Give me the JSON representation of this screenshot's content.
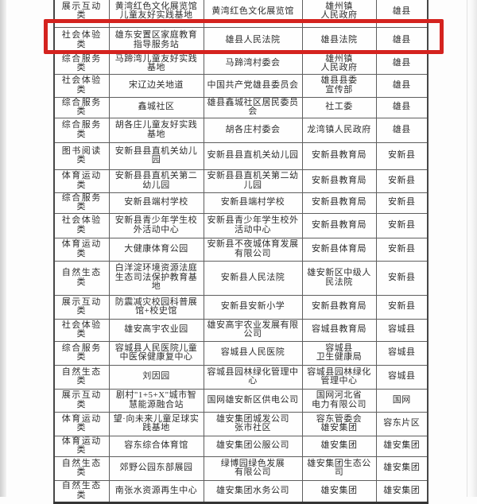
{
  "page": {
    "background": "#fdfdfd",
    "description_colors": {
      "table_border": "#5e5e5e",
      "text": "#2d2d2d",
      "highlight_red": "#d4231f"
    }
  },
  "highlight": {
    "color": "#d4231f",
    "highlighted_row_index": 1
  },
  "table": {
    "rows": [
      {
        "category": "展示互动类",
        "site": "黄湾红色文化展览馆\n儿童友好实践基地",
        "operator": "黄湾红色文化展览馆",
        "authority": "雄州镇\n人民政府",
        "district": "雄县"
      },
      {
        "category": "社会体验类",
        "site": "雄东安置区家庭教育\n指导服务站",
        "operator": "雄县人民法院",
        "authority": "雄县法院",
        "district": "雄县",
        "highlighted": true
      },
      {
        "category": "综合服务类",
        "site": "马蹄湾儿童友好实践\n基地",
        "operator": "马蹄湾村委会",
        "authority": "雄州镇\n人民政府",
        "district": "雄县"
      },
      {
        "category": "社会体验类",
        "site": "宋辽边关地道",
        "operator": "中国共产党雄县委员会",
        "authority": "雄县县委\n宣传部",
        "district": "雄县"
      },
      {
        "category": "综合服务类",
        "site": "鑫城社区",
        "operator": "雄县鑫城社区居民委员\n会",
        "authority": "社工委",
        "district": "雄县"
      },
      {
        "category": "综合服务类",
        "site": "胡各庄儿童友好实践\n基地",
        "operator": "胡各庄村委会",
        "authority": "龙湾镇人民政府",
        "district": "雄县"
      },
      {
        "category": "图书阅读类",
        "site": "安新县县直机关幼儿\n园",
        "operator": "安新县县直机关幼儿园",
        "authority": "安新县教育局",
        "district": "安新县"
      },
      {
        "category": "体育运动类",
        "site": "安新县县直机关第二\n幼儿园",
        "operator": "安新县县直机关第二幼\n儿园",
        "authority": "安新县教育局",
        "district": "安新县"
      },
      {
        "category": "综合服务类",
        "site": "安新县端村学校",
        "operator": "安新县端村学校",
        "authority": "安新县教育局",
        "district": "安新县"
      },
      {
        "category": "社会体验类",
        "site": "安新县青少年学生校\n外活动中心",
        "operator": "安新县青少年学生校外\n活动中心",
        "authority": "安新县教育局",
        "district": "安新县"
      },
      {
        "category": "体育运动类",
        "site": "大健康体育公园",
        "operator": "安新县不夜城体育发展\n有限公司",
        "authority": "安新县体育局",
        "district": "安新县"
      },
      {
        "category": "自然生态类",
        "site": "白洋淀环境资源法庭\n生态司法保护教育基\n地",
        "operator": "安新县人民法院",
        "authority": "雄安新区中级人\n民法院",
        "district": "安新县"
      },
      {
        "category": "展示互动类",
        "site": "防震减灾校园科普展\n馆+校史馆",
        "operator": "安新县安新小学",
        "authority": "安新县教育局",
        "district": "安新县"
      },
      {
        "category": "社会体验类",
        "site": "雄安高宇农业园",
        "operator": "雄安高宇农业发展有限\n公司",
        "authority": "容城县教育局",
        "district": "容城县"
      },
      {
        "category": "综合服务类",
        "site": "容城县人民医院儿童\n中医保健康复中心",
        "operator": "容城县人民医院",
        "authority": "容城县\n卫生健康局",
        "district": "容城县"
      },
      {
        "category": "自然生态类",
        "site": "刘因园",
        "operator": "容城县园林绿化管理中\n心",
        "authority": "容城县园林绿化\n管理中心",
        "district": "容城县"
      },
      {
        "category": "展示互动类",
        "site": "剧村\"1+5+X\"城市智\n慧能源融合站",
        "operator": "国网雄安新区供电公司",
        "authority": "国网河北省\n电力有限公司",
        "district": "国网"
      },
      {
        "category": "体育运动类",
        "site": "望·向未来儿童足球实\n践基地",
        "operator": "雄安集团城发公司\n张市社区",
        "authority": "容东管委会\n雄安集团",
        "district": "容东片区"
      },
      {
        "category": "体育运动类",
        "site": "容东综合体育馆",
        "operator": "雄安集团公服公司",
        "authority": "雄安集团",
        "district": "雄安集团"
      },
      {
        "category": "自然生态类",
        "site": "郊野公园东部展园",
        "operator": "绿博园绿色发展\n有限公司",
        "authority": "雄安集团生态公\n司",
        "district": "雄安集团"
      },
      {
        "category": "自然生态类",
        "site": "南张水资源再生中心",
        "operator": "雄安集团水务公司",
        "authority": "雄安集团",
        "district": "雄安集团"
      }
    ]
  }
}
